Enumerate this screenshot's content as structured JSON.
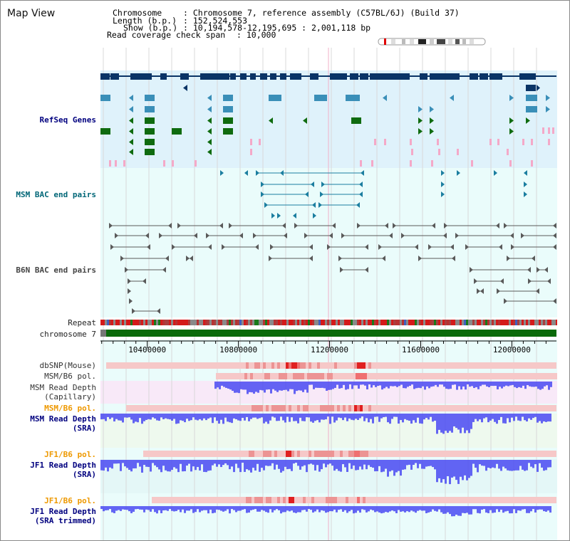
{
  "app": {
    "title": "Map View"
  },
  "header": {
    "chromosome_label": "Chromosome",
    "chromosome_value": ": Chromosome 7, reference assembly (C57BL/6J) (Build 37)",
    "length_label": "Length (b.p.)",
    "length_value": ": 152,524,553",
    "show_label": "Show (b.p.)",
    "show_value": ": 10,194,578-12,195,695 : 2,001,118 bp",
    "coverage_label": "Read coverage check span",
    "coverage_value": ": 10,000"
  },
  "tracks": {
    "refseq": "RefSeq Genes",
    "msm_bac": "MSM BAC end pairs",
    "b6n_bac": "B6N BAC end pairs",
    "repeat": "Repeat",
    "chromosome": "chromosome 7",
    "dbsnp": "dbSNP(Mouse)",
    "msm_b6_pol": "MSM/B6 pol.",
    "msm_depth_cap_1": "MSM Read Depth",
    "msm_depth_cap_2": "(Capillary)",
    "msm_b6_pol_2": "MSM/B6 pol.",
    "msm_depth_sra_1": "MSM Read Depth",
    "msm_depth_sra_2": "(SRA)",
    "jf1_b6_pol": "JF1/B6 pol.",
    "jf1_depth_sra_1": "JF1 Read Depth",
    "jf1_depth_sra_2": "(SRA)",
    "jf1_b6_pol_2": "JF1/B6 pol.",
    "jf1_depth_trim_1": "JF1 Read Depth",
    "jf1_depth_trim_2": "(SRA trimmed)"
  },
  "ruler": {
    "ticks": [
      "10400000",
      "10800000",
      "11200000",
      "11600000",
      "12000000"
    ],
    "tick_values": [
      10400000,
      10800000,
      11200000,
      11600000,
      12000000
    ],
    "range_start": 10194578,
    "range_end": 12195695
  },
  "colors": {
    "refseq_bg": "#dff2fb",
    "bac_bg": "#eafcfb",
    "gene_dark": "#0a3466",
    "gene_mid": "#3a8fb8",
    "gene_green": "#0f6b0f",
    "gene_pink": "#f4a9c8",
    "msm_bac": "#1b7ea0",
    "b6n_bac": "#5a5a5a",
    "chromosome_bar": "#0a6a0a",
    "depth_blue": "#4a4af2",
    "pol_red": "#e23030",
    "label_navy": "#00007f",
    "label_teal": "#006677",
    "label_orange": "#ee9900"
  }
}
